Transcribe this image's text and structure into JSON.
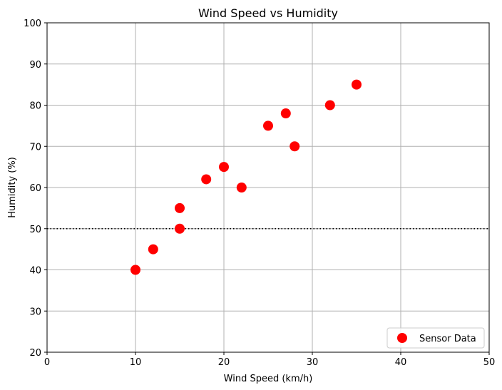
{
  "chart_data": {
    "type": "scatter",
    "title": "Wind Speed vs Humidity",
    "xlabel": "Wind Speed (km/h)",
    "ylabel": "Humidity (%)",
    "xlim": [
      0,
      50
    ],
    "ylim": [
      20,
      100
    ],
    "xticks": [
      0,
      10,
      20,
      30,
      40,
      50
    ],
    "yticks": [
      20,
      30,
      40,
      50,
      60,
      70,
      80,
      90,
      100
    ],
    "grid": true,
    "legend_position": "lower-right",
    "reference_line": {
      "axis": "y",
      "value": 50,
      "style": "dotted",
      "color": "#000000"
    },
    "series": [
      {
        "name": "Sensor Data",
        "color": "#ff0000",
        "x": [
          10,
          12,
          15,
          15,
          18,
          20,
          22,
          25,
          27,
          28,
          32,
          35
        ],
        "y": [
          40,
          45,
          50,
          55,
          62,
          65,
          60,
          75,
          78,
          70,
          80,
          85
        ]
      }
    ]
  }
}
